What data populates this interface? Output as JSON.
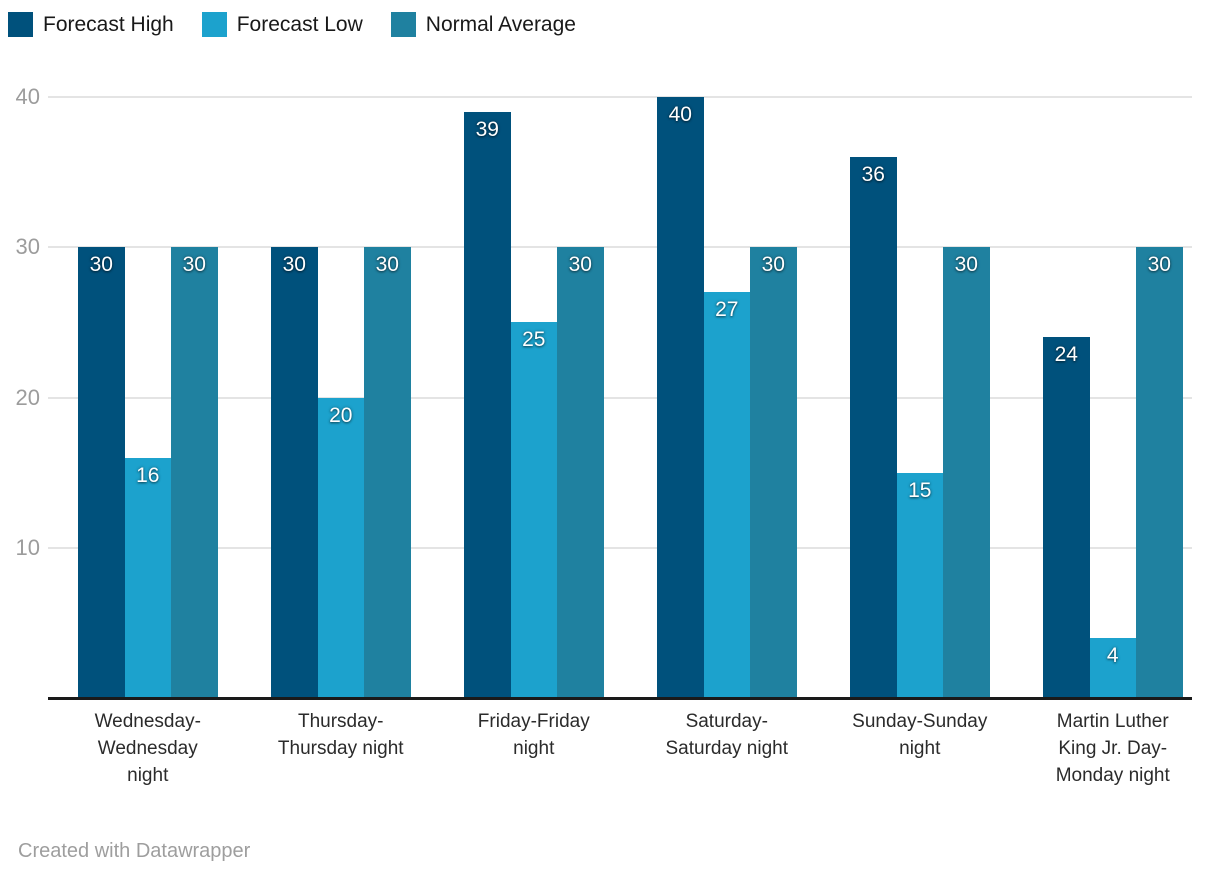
{
  "chart_data": {
    "type": "bar",
    "title": "",
    "categories": [
      "Wednesday-Wednesday night",
      "Thursday-Thursday night",
      "Friday-Friday night",
      "Saturday-Saturday night",
      "Sunday-Sunday night",
      "Martin Luther King Jr. Day-Monday night"
    ],
    "series": [
      {
        "name": "Forecast High",
        "color": "#00517c",
        "values": [
          30,
          30,
          39,
          40,
          36,
          24
        ]
      },
      {
        "name": "Forecast Low",
        "color": "#1ca2cd",
        "values": [
          16,
          20,
          25,
          27,
          15,
          4
        ]
      },
      {
        "name": "Normal Average",
        "color": "#1f81a0",
        "values": [
          30,
          30,
          30,
          30,
          30,
          30
        ]
      }
    ],
    "ylim": [
      0,
      40
    ],
    "yticks": [
      40,
      30,
      20,
      10
    ],
    "grid": true,
    "legend_position": "top-left",
    "value_labels": true
  },
  "footer": {
    "credit": "Created with Datawrapper"
  },
  "colors": {
    "background": "#ffffff",
    "gridline": "#e4e4e4",
    "axis_line": "#1a1a1a",
    "y_tick_label": "#9c9c9c",
    "x_tick_label": "#2b2b2b",
    "legend_text": "#191919"
  }
}
